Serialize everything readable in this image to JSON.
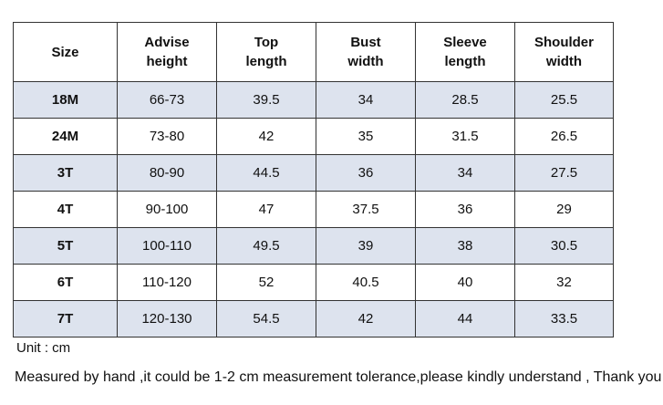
{
  "table": {
    "header": [
      [
        "Size"
      ],
      [
        "Advise",
        "height"
      ],
      [
        "Top",
        "length"
      ],
      [
        "Bust",
        "width"
      ],
      [
        "Sleeve",
        "length"
      ],
      [
        "Shoulder",
        "width"
      ]
    ],
    "rows": [
      [
        "18M",
        "66-73",
        "39.5",
        "34",
        "28.5",
        "25.5"
      ],
      [
        "24M",
        "73-80",
        "42",
        "35",
        "31.5",
        "26.5"
      ],
      [
        "3T",
        "80-90",
        "44.5",
        "36",
        "34",
        "27.5"
      ],
      [
        "4T",
        "90-100",
        "47",
        "37.5",
        "36",
        "29"
      ],
      [
        "5T",
        "100-110",
        "49.5",
        "39",
        "38",
        "30.5"
      ],
      [
        "6T",
        "110-120",
        "52",
        "40.5",
        "40",
        "32"
      ],
      [
        "7T",
        "120-130",
        "54.5",
        "42",
        "44",
        "33.5"
      ]
    ]
  },
  "unit": "Unit : cm",
  "note": "Measured by hand ,it could be 1-2 cm measurement tolerance,please kindly understand , Thank you !"
}
